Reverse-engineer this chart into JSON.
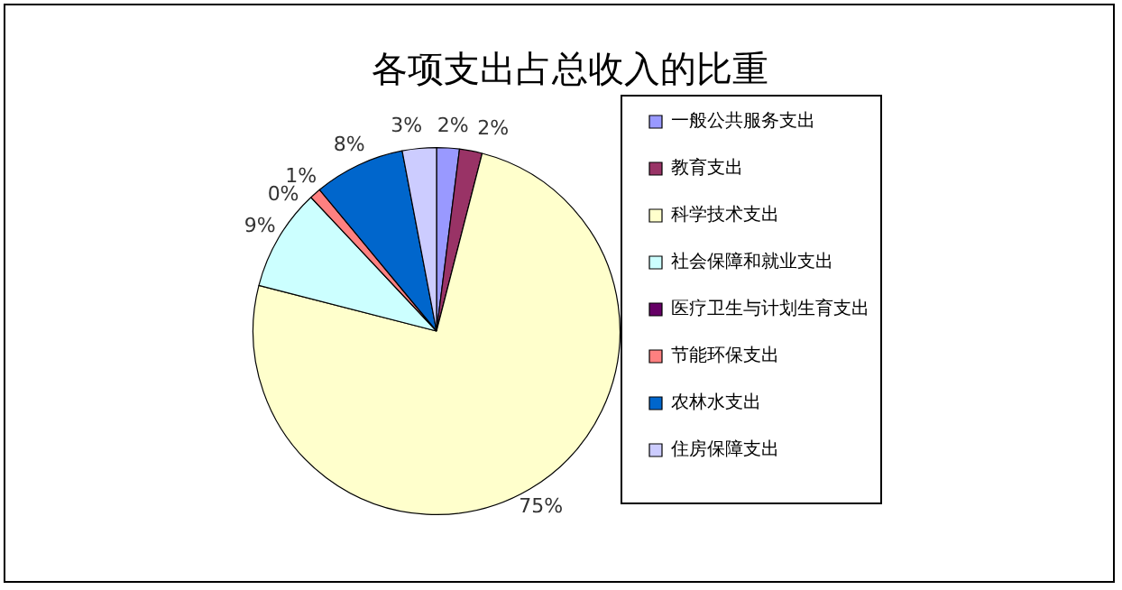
{
  "chart_data": {
    "type": "pie",
    "title": "各项支出占总收入的比重",
    "categories": [
      "一般公共服务支出",
      "教育支出",
      "科学技术支出",
      "社会保障和就业支出",
      "医疗卫生与计划生育支出",
      "节能环保支出",
      "农林水支出",
      "住房保障支出"
    ],
    "values": [
      2,
      2,
      75,
      9,
      0,
      1,
      8,
      3
    ],
    "colors": [
      "#9999ff",
      "#993366",
      "#ffffcc",
      "#ccffff",
      "#660066",
      "#ff8080",
      "#0066cc",
      "#ccccff"
    ],
    "value_labels": [
      "2%",
      "2%",
      "75%",
      "9%",
      "0%",
      "1%",
      "8%",
      "3%"
    ],
    "legend": "right"
  }
}
